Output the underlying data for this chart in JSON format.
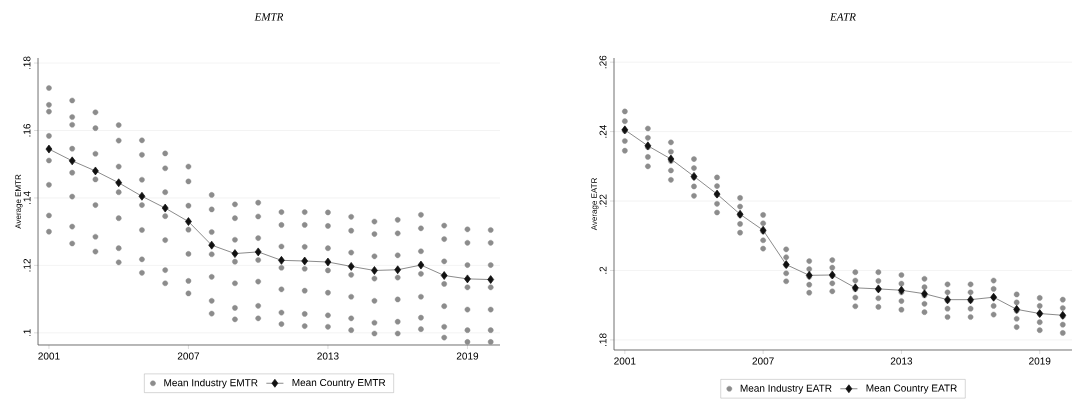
{
  "chart_data": [
    {
      "type": "line",
      "title": "EMTR",
      "ylabel": "Average EMTR",
      "xlim": [
        2000.53,
        2020.4
      ],
      "xticks": [
        2001,
        2007,
        2013,
        2019
      ],
      "ylim": [
        0.0964,
        0.1815
      ],
      "yticks": [
        {
          "value": 0.1,
          "label": ".1"
        },
        {
          "value": 0.12,
          "label": ".12"
        },
        {
          "value": 0.14,
          "label": ".14"
        },
        {
          "value": 0.16,
          "label": ".16"
        },
        {
          "value": 0.18,
          "label": ".18"
        }
      ],
      "grid": "y",
      "legend": "bottom",
      "x": [
        2001,
        2002,
        2003,
        2004,
        2005,
        2006,
        2007,
        2008,
        2009,
        2010,
        2011,
        2012,
        2013,
        2014,
        2015,
        2016,
        2017,
        2018,
        2019,
        2020
      ],
      "series": [
        {
          "name": "Mean Industry EMTR",
          "type": "scatter",
          "marker": "circle",
          "color": "#8c8c8c",
          "x": [
            2001,
            2001,
            2001,
            2001,
            2001,
            2001,
            2001,
            2001,
            2002,
            2002,
            2002,
            2002,
            2002,
            2002,
            2002,
            2002,
            2003,
            2003,
            2003,
            2003,
            2003,
            2003,
            2003,
            2004,
            2004,
            2004,
            2004,
            2004,
            2004,
            2004,
            2005,
            2005,
            2005,
            2005,
            2005,
            2005,
            2005,
            2006,
            2006,
            2006,
            2006,
            2006,
            2006,
            2006,
            2007,
            2007,
            2007,
            2007,
            2007,
            2007,
            2007,
            2008,
            2008,
            2008,
            2008,
            2008,
            2008,
            2008,
            2009,
            2009,
            2009,
            2009,
            2009,
            2009,
            2009,
            2010,
            2010,
            2010,
            2010,
            2010,
            2010,
            2010,
            2011,
            2011,
            2011,
            2011,
            2011,
            2011,
            2011,
            2012,
            2012,
            2012,
            2012,
            2012,
            2012,
            2012,
            2013,
            2013,
            2013,
            2013,
            2013,
            2013,
            2013,
            2014,
            2014,
            2014,
            2014,
            2014,
            2014,
            2014,
            2015,
            2015,
            2015,
            2015,
            2015,
            2015,
            2015,
            2016,
            2016,
            2016,
            2016,
            2016,
            2016,
            2016,
            2017,
            2017,
            2017,
            2017,
            2017,
            2017,
            2017,
            2018,
            2018,
            2018,
            2018,
            2018,
            2018,
            2018,
            2019,
            2019,
            2019,
            2019,
            2019,
            2019,
            2019,
            2020,
            2020,
            2020,
            2020,
            2020,
            2020,
            2020
          ],
          "values": [
            0.1726,
            0.1676,
            0.1656,
            0.1584,
            0.1511,
            0.1439,
            0.1348,
            0.13,
            0.1689,
            0.164,
            0.1617,
            0.1546,
            0.1475,
            0.1404,
            0.1315,
            0.1265,
            0.1654,
            0.1607,
            0.1531,
            0.1455,
            0.1379,
            0.1285,
            0.1241,
            0.1616,
            0.157,
            0.1493,
            0.1417,
            0.134,
            0.1251,
            0.1209,
            0.1571,
            0.1528,
            0.1454,
            0.1379,
            0.1305,
            0.1218,
            0.1178,
            0.1532,
            0.1488,
            0.1417,
            0.1346,
            0.1275,
            0.1186,
            0.1147,
            0.1493,
            0.1449,
            0.1377,
            0.1306,
            0.1234,
            0.1154,
            0.1117,
            0.1409,
            0.1366,
            0.1299,
            0.1233,
            0.1166,
            0.1095,
            0.1057,
            0.1381,
            0.134,
            0.1276,
            0.1211,
            0.1147,
            0.1074,
            0.104,
            0.1386,
            0.1345,
            0.1281,
            0.1216,
            0.1152,
            0.108,
            0.1043,
            0.1358,
            0.132,
            0.1256,
            0.1193,
            0.1129,
            0.106,
            0.1026,
            0.1358,
            0.132,
            0.1255,
            0.119,
            0.1125,
            0.1056,
            0.102,
            0.1357,
            0.1317,
            0.1251,
            0.1185,
            0.1119,
            0.1052,
            0.1018,
            0.1344,
            0.1303,
            0.1238,
            0.1172,
            0.1107,
            0.1043,
            0.1008,
            0.133,
            0.1293,
            0.1227,
            0.1161,
            0.1095,
            0.103,
            0.0998,
            0.1335,
            0.1295,
            0.123,
            0.1164,
            0.1099,
            0.1033,
            0.0998,
            0.135,
            0.131,
            0.1242,
            0.1175,
            0.1107,
            0.1045,
            0.1011,
            0.1318,
            0.1278,
            0.1212,
            0.1145,
            0.1079,
            0.1018,
            0.0986,
            0.1307,
            0.1267,
            0.1201,
            0.1135,
            0.1069,
            0.1008,
            0.0973,
            0.1305,
            0.1267,
            0.1201,
            0.1135,
            0.1069,
            0.1008,
            0.0973
          ]
        },
        {
          "name": "Mean Country EMTR",
          "marker": "diamond",
          "color": "#111111",
          "values": [
            0.1545,
            0.151,
            0.148,
            0.1445,
            0.1405,
            0.137,
            0.133,
            0.126,
            0.1235,
            0.124,
            0.1215,
            0.1213,
            0.121,
            0.1197,
            0.1185,
            0.1187,
            0.1201,
            0.117,
            0.116,
            0.1158
          ]
        }
      ]
    },
    {
      "type": "line",
      "title": "EATR",
      "ylabel": "Average EATR",
      "xlim": [
        2000.53,
        2020.4
      ],
      "xticks": [
        2001,
        2007,
        2013,
        2019
      ],
      "ylim": [
        0.1771,
        0.2612
      ],
      "yticks": [
        {
          "value": 0.18,
          "label": ".18"
        },
        {
          "value": 0.2,
          "label": ".2"
        },
        {
          "value": 0.22,
          "label": ".22"
        },
        {
          "value": 0.24,
          "label": ".24"
        },
        {
          "value": 0.26,
          "label": ".26"
        }
      ],
      "grid": "y",
      "legend": "bottom",
      "x": [
        2001,
        2002,
        2003,
        2004,
        2005,
        2006,
        2007,
        2008,
        2009,
        2010,
        2011,
        2012,
        2013,
        2014,
        2015,
        2016,
        2017,
        2018,
        2019,
        2020
      ],
      "series": [
        {
          "name": "Mean Industry EATR",
          "type": "scatter",
          "marker": "circle",
          "color": "#8c8c8c",
          "x": [
            2001,
            2001,
            2001,
            2001,
            2001,
            2002,
            2002,
            2002,
            2002,
            2002,
            2003,
            2003,
            2003,
            2003,
            2003,
            2004,
            2004,
            2004,
            2004,
            2004,
            2005,
            2005,
            2005,
            2005,
            2005,
            2006,
            2006,
            2006,
            2006,
            2006,
            2007,
            2007,
            2007,
            2007,
            2007,
            2008,
            2008,
            2008,
            2008,
            2008,
            2009,
            2009,
            2009,
            2009,
            2009,
            2010,
            2010,
            2010,
            2010,
            2010,
            2011,
            2011,
            2011,
            2011,
            2011,
            2012,
            2012,
            2012,
            2012,
            2012,
            2013,
            2013,
            2013,
            2013,
            2013,
            2014,
            2014,
            2014,
            2014,
            2014,
            2015,
            2015,
            2015,
            2015,
            2015,
            2016,
            2016,
            2016,
            2016,
            2016,
            2017,
            2017,
            2017,
            2017,
            2017,
            2018,
            2018,
            2018,
            2018,
            2018,
            2019,
            2019,
            2019,
            2019,
            2019,
            2020,
            2020,
            2020,
            2020,
            2020
          ],
          "values": [
            0.2458,
            0.243,
            0.2402,
            0.2373,
            0.2345,
            0.2409,
            0.2382,
            0.2355,
            0.2327,
            0.23,
            0.2369,
            0.2342,
            0.2315,
            0.2288,
            0.2261,
            0.2321,
            0.2295,
            0.2268,
            0.2242,
            0.2215,
            0.2268,
            0.2243,
            0.2218,
            0.2192,
            0.2167,
            0.2209,
            0.2184,
            0.2159,
            0.2134,
            0.2109,
            0.216,
            0.2136,
            0.2112,
            0.2087,
            0.2063,
            0.2061,
            0.2038,
            0.2015,
            0.1992,
            0.1969,
            0.2027,
            0.2004,
            0.1982,
            0.1959,
            0.1936,
            0.203,
            0.2008,
            0.1985,
            0.1963,
            0.194,
            0.1995,
            0.1971,
            0.1946,
            0.1922,
            0.1897,
            0.1995,
            0.197,
            0.1945,
            0.192,
            0.1895,
            0.1987,
            0.1962,
            0.1937,
            0.1912,
            0.1887,
            0.1976,
            0.1952,
            0.1928,
            0.1904,
            0.188,
            0.196,
            0.1937,
            0.1913,
            0.189,
            0.1866,
            0.196,
            0.1937,
            0.1913,
            0.189,
            0.1866,
            0.1971,
            0.1947,
            0.1922,
            0.1898,
            0.1873,
            0.1931,
            0.1908,
            0.1884,
            0.1861,
            0.1837,
            0.1921,
            0.1898,
            0.1875,
            0.1851,
            0.1828,
            0.1916,
            0.1892,
            0.1868,
            0.1844,
            0.182
          ]
        },
        {
          "name": "Mean Country EATR",
          "marker": "diamond",
          "color": "#111111",
          "values": [
            0.2405,
            0.2359,
            0.2321,
            0.2271,
            0.222,
            0.2162,
            0.2116,
            0.2017,
            0.1986,
            0.1987,
            0.195,
            0.1947,
            0.1943,
            0.1933,
            0.1916,
            0.1916,
            0.1923,
            0.1888,
            0.1876,
            0.1871
          ]
        }
      ]
    }
  ]
}
